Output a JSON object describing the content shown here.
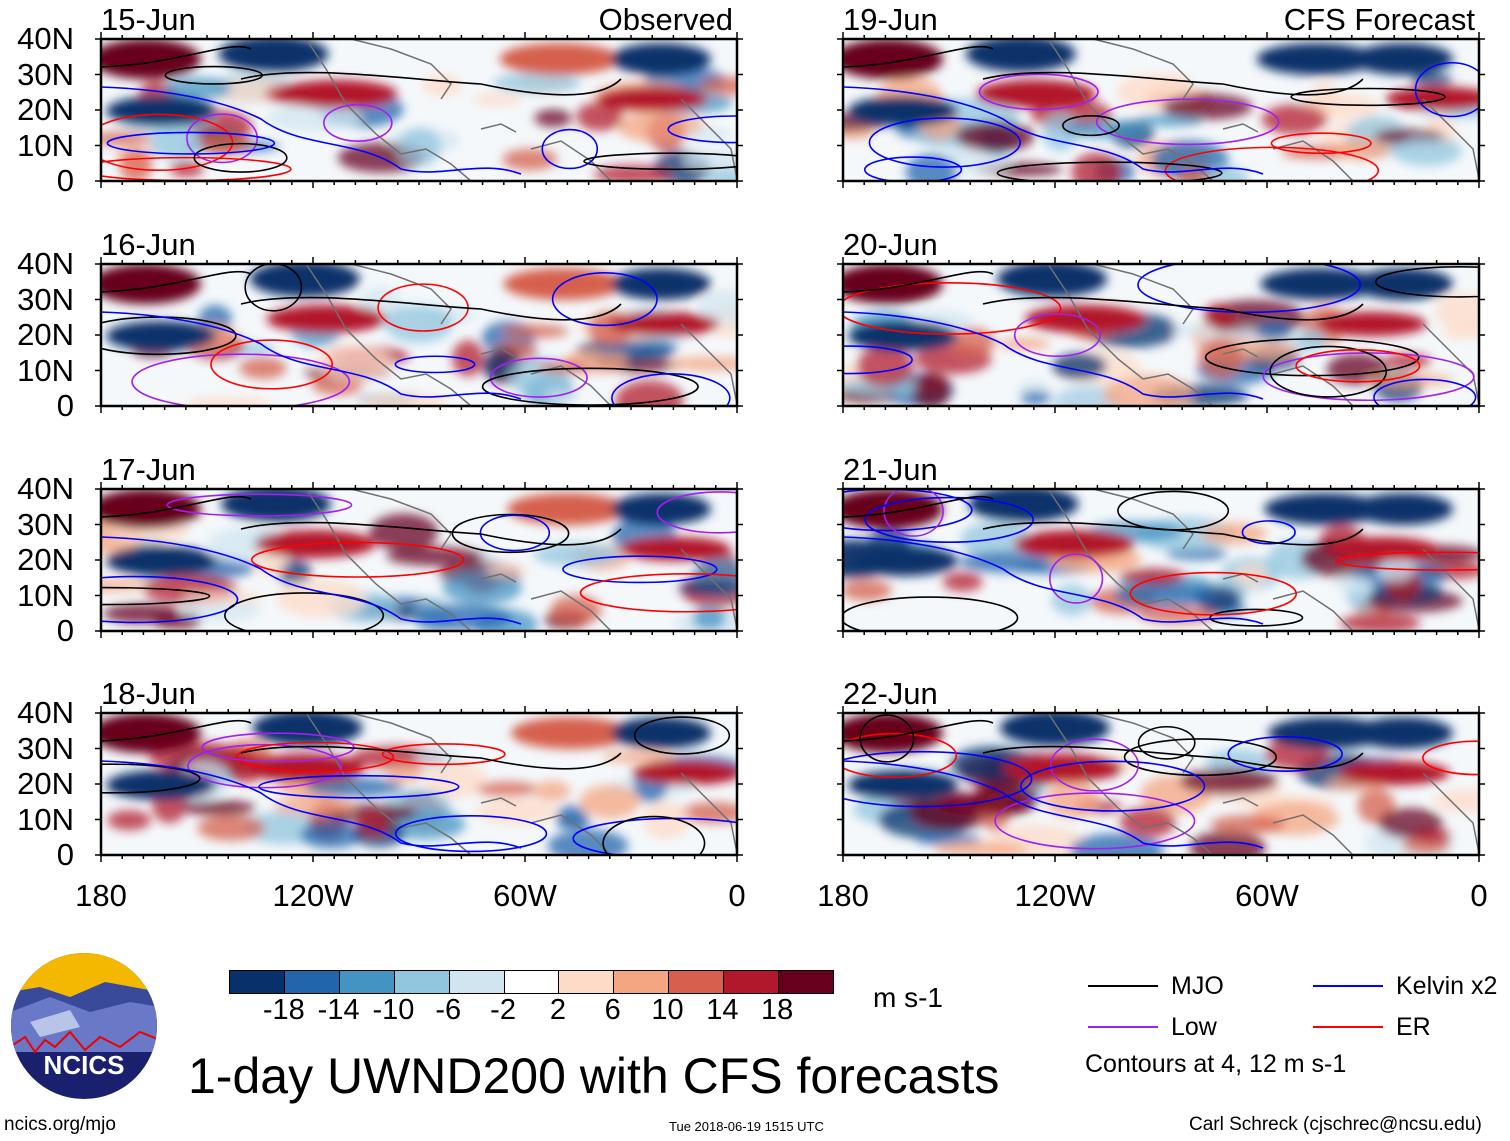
{
  "chart_data": {
    "type": "heatmap",
    "title": "1-day UWND200 with CFS forecasts",
    "units": "m s-1",
    "panels": [
      {
        "date": "15-Jun",
        "label": "Observed",
        "column": "left"
      },
      {
        "date": "16-Jun",
        "column": "left"
      },
      {
        "date": "17-Jun",
        "column": "left"
      },
      {
        "date": "18-Jun",
        "column": "left"
      },
      {
        "date": "19-Jun",
        "label": "CFS Forecast",
        "column": "right"
      },
      {
        "date": "20-Jun",
        "column": "right"
      },
      {
        "date": "21-Jun",
        "column": "right"
      },
      {
        "date": "22-Jun",
        "column": "right"
      }
    ],
    "y_ticks": [
      "40N",
      "30N",
      "20N",
      "10N",
      "0"
    ],
    "x_ticks": [
      "180",
      "120W",
      "60W",
      "0"
    ],
    "colorbar": {
      "labels": [
        "-18",
        "-14",
        "-10",
        "-6",
        "-2",
        "2",
        "6",
        "10",
        "14",
        "18"
      ],
      "colors": [
        "#08306b",
        "#2166ac",
        "#4393c3",
        "#92c5de",
        "#d1e5f0",
        "#ffffff",
        "#fddbc7",
        "#f4a582",
        "#d6604d",
        "#b2182b",
        "#67001f"
      ]
    },
    "legend": [
      {
        "label": "MJO",
        "color": "#000000"
      },
      {
        "label": "Kelvin x2",
        "color": "#0000ff"
      },
      {
        "label": "Low",
        "color": "#a020f0"
      },
      {
        "label": "ER",
        "color": "#ff0000"
      }
    ],
    "contour_note": "Contours at 4, 12 m s-1"
  },
  "footer": {
    "url": "ncics.org/mjo",
    "timestamp": "Tue 2018-06-19 1515 UTC",
    "author": "Carl Schreck (cjschrec@ncsu.edu)",
    "logo_text": "NCICS"
  }
}
